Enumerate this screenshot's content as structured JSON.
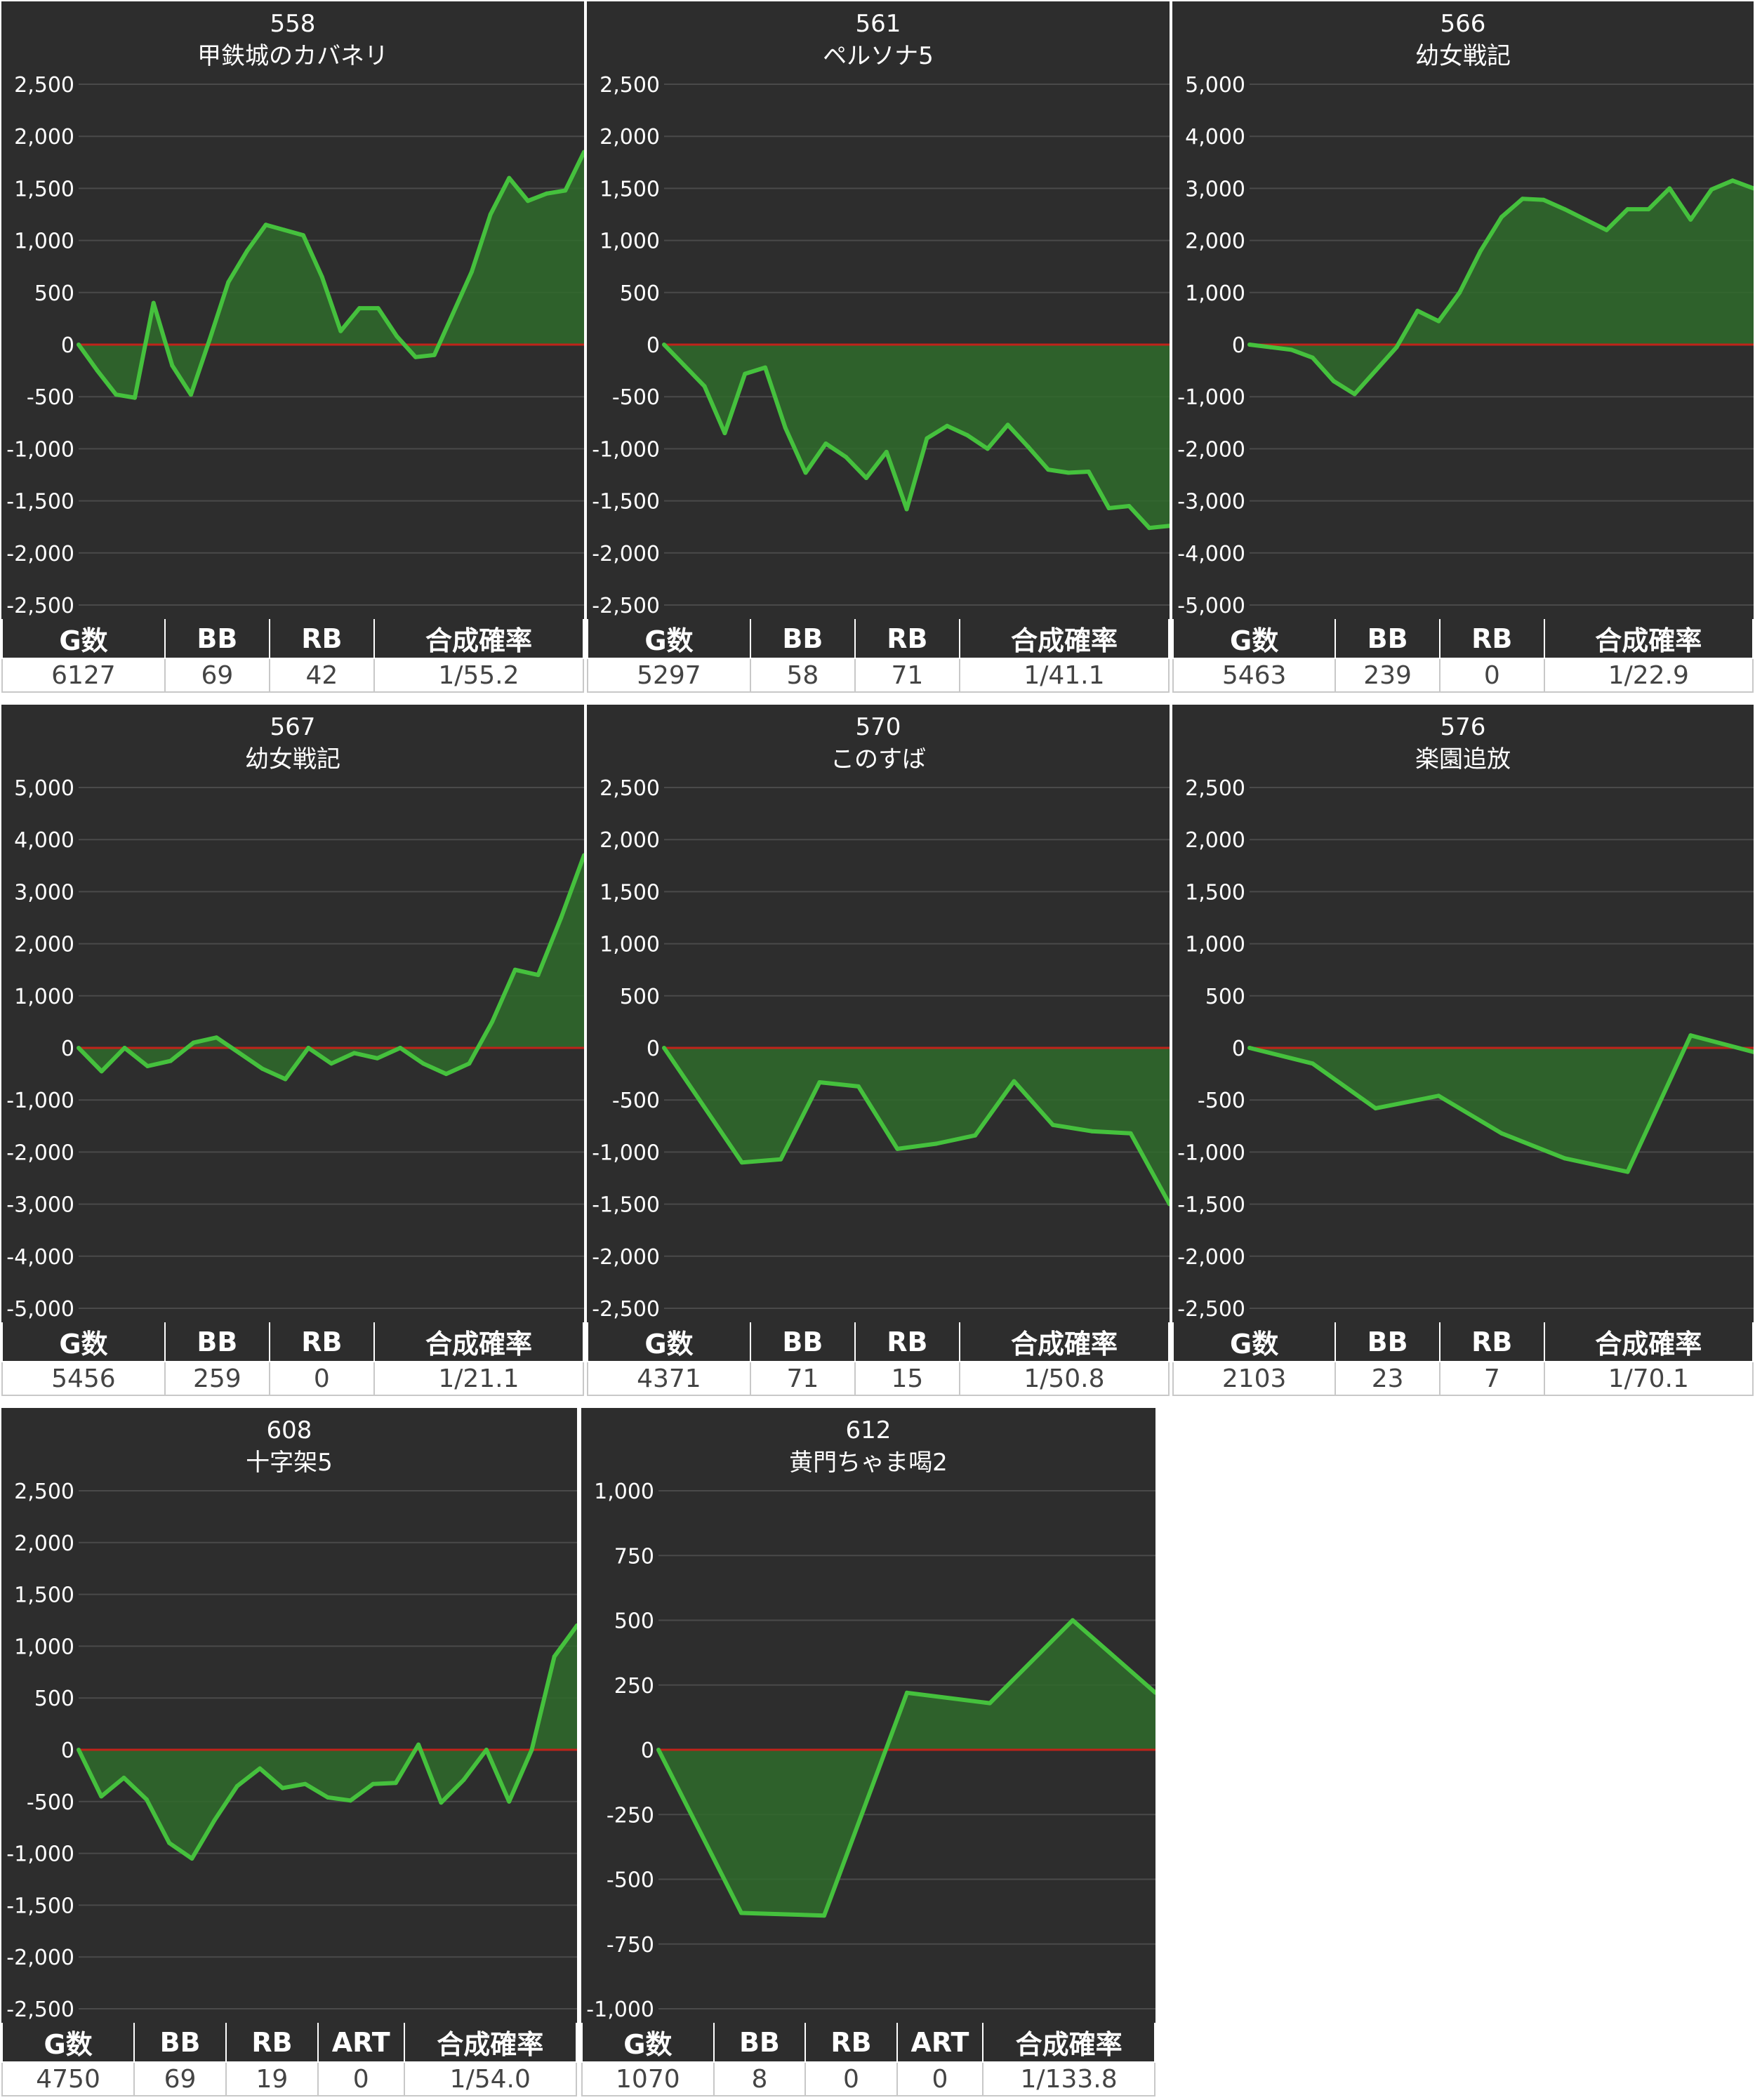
{
  "theme": {
    "panel_bg": "#2d2d2d",
    "grid_color": "#4a4a4a",
    "zero_line_color": "#c0231a",
    "line_color": "#45c13d",
    "fill_color": "#2f6b2c"
  },
  "charts": [
    {
      "machine_no": "558",
      "machine_name": "甲鉄城のカバネリ",
      "chart_data": {
        "type": "area",
        "y_ticks": [
          "2,500",
          "2,000",
          "1,500",
          "1,000",
          "500",
          "0",
          "-500",
          "-1,000",
          "-1,500",
          "-2,000",
          "-2,500"
        ],
        "ylim": [
          -2500,
          2500
        ],
        "values": [
          0,
          -250,
          -480,
          -510,
          400,
          -200,
          -480,
          50,
          600,
          900,
          1150,
          1100,
          1050,
          650,
          130,
          350,
          350,
          80,
          -120,
          -100,
          300,
          700,
          1250,
          1600,
          1380,
          1450,
          1480,
          1850
        ]
      },
      "stats": {
        "headers": [
          "G数",
          "BB",
          "RB",
          "合成確率"
        ],
        "values": [
          "6127",
          "69",
          "42",
          "1/55.2"
        ]
      }
    },
    {
      "machine_no": "561",
      "machine_name": "ペルソナ5",
      "chart_data": {
        "type": "area",
        "y_ticks": [
          "2,500",
          "2,000",
          "1,500",
          "1,000",
          "500",
          "0",
          "-500",
          "-1,000",
          "-1,500",
          "-2,000",
          "-2,500"
        ],
        "ylim": [
          -2500,
          2500
        ],
        "values": [
          0,
          -200,
          -400,
          -850,
          -280,
          -220,
          -800,
          -1230,
          -950,
          -1080,
          -1280,
          -1030,
          -1580,
          -900,
          -780,
          -870,
          -1000,
          -770,
          -980,
          -1200,
          -1230,
          -1220,
          -1570,
          -1550,
          -1760,
          -1740
        ]
      },
      "stats": {
        "headers": [
          "G数",
          "BB",
          "RB",
          "合成確率"
        ],
        "values": [
          "5297",
          "58",
          "71",
          "1/41.1"
        ]
      }
    },
    {
      "machine_no": "566",
      "machine_name": "幼女戦記",
      "chart_data": {
        "type": "area",
        "y_ticks": [
          "5,000",
          "4,000",
          "3,000",
          "2,000",
          "1,000",
          "0",
          "-1,000",
          "-2,000",
          "-3,000",
          "-4,000",
          "-5,000"
        ],
        "ylim": [
          -5000,
          5000
        ],
        "values": [
          0,
          -50,
          -100,
          -250,
          -700,
          -950,
          -500,
          -50,
          650,
          450,
          1000,
          1800,
          2450,
          2800,
          2780,
          2600,
          2400,
          2200,
          2600,
          2600,
          3000,
          2400,
          2980,
          3150,
          3000
        ]
      },
      "stats": {
        "headers": [
          "G数",
          "BB",
          "RB",
          "合成確率"
        ],
        "values": [
          "5463",
          "239",
          "0",
          "1/22.9"
        ]
      }
    },
    {
      "machine_no": "567",
      "machine_name": "幼女戦記",
      "chart_data": {
        "type": "area",
        "y_ticks": [
          "5,000",
          "4,000",
          "3,000",
          "2,000",
          "1,000",
          "0",
          "-1,000",
          "-2,000",
          "-3,000",
          "-4,000",
          "-5,000"
        ],
        "ylim": [
          -5000,
          5000
        ],
        "values": [
          0,
          -450,
          0,
          -350,
          -250,
          100,
          200,
          -100,
          -400,
          -600,
          0,
          -300,
          -100,
          -200,
          0,
          -300,
          -500,
          -300,
          500,
          1500,
          1400,
          2500,
          3700
        ]
      },
      "stats": {
        "headers": [
          "G数",
          "BB",
          "RB",
          "合成確率"
        ],
        "values": [
          "5456",
          "259",
          "0",
          "1/21.1"
        ]
      }
    },
    {
      "machine_no": "570",
      "machine_name": "このすば",
      "chart_data": {
        "type": "area",
        "y_ticks": [
          "2,500",
          "2,000",
          "1,500",
          "1,000",
          "500",
          "0",
          "-500",
          "-1,000",
          "-1,500",
          "-2,000",
          "-2,500"
        ],
        "ylim": [
          -2500,
          2500
        ],
        "values": [
          0,
          -550,
          -1100,
          -1070,
          -330,
          -370,
          -970,
          -920,
          -840,
          -320,
          -740,
          -800,
          -820,
          -1500
        ]
      },
      "stats": {
        "headers": [
          "G数",
          "BB",
          "RB",
          "合成確率"
        ],
        "values": [
          "4371",
          "71",
          "15",
          "1/50.8"
        ]
      }
    },
    {
      "machine_no": "576",
      "machine_name": "楽園追放",
      "chart_data": {
        "type": "area",
        "y_ticks": [
          "2,500",
          "2,000",
          "1,500",
          "1,000",
          "500",
          "0",
          "-500",
          "-1,000",
          "-1,500",
          "-2,000",
          "-2,500"
        ],
        "ylim": [
          -2500,
          2500
        ],
        "values": [
          0,
          -150,
          -580,
          -460,
          -820,
          -1060,
          -1190,
          120,
          -40
        ]
      },
      "stats": {
        "headers": [
          "G数",
          "BB",
          "RB",
          "合成確率"
        ],
        "values": [
          "2103",
          "23",
          "7",
          "1/70.1"
        ]
      }
    },
    {
      "machine_no": "608",
      "machine_name": "十字架5",
      "chart_data": {
        "type": "area",
        "y_ticks": [
          "2,500",
          "2,000",
          "1,500",
          "1,000",
          "500",
          "0",
          "-500",
          "-1,000",
          "-1,500",
          "-2,000",
          "-2,500"
        ],
        "ylim": [
          -2500,
          2500
        ],
        "values": [
          0,
          -450,
          -270,
          -480,
          -900,
          -1050,
          -680,
          -350,
          -180,
          -370,
          -330,
          -460,
          -490,
          -330,
          -320,
          50,
          -510,
          -290,
          0,
          -500,
          0,
          900,
          1200
        ]
      },
      "stats": {
        "headers": [
          "G数",
          "BB",
          "RB",
          "ART",
          "合成確率"
        ],
        "values": [
          "4750",
          "69",
          "19",
          "0",
          "1/54.0"
        ]
      }
    },
    {
      "machine_no": "612",
      "machine_name": "黄門ちゃま喝2",
      "chart_data": {
        "type": "area",
        "y_ticks": [
          "1,000",
          "750",
          "500",
          "250",
          "0",
          "-250",
          "-500",
          "-750",
          "-1,000"
        ],
        "ylim": [
          -1000,
          1000
        ],
        "values": [
          0,
          -630,
          -640,
          220,
          180,
          500,
          220
        ]
      },
      "stats": {
        "headers": [
          "G数",
          "BB",
          "RB",
          "ART",
          "合成確率"
        ],
        "values": [
          "1070",
          "8",
          "0",
          "0",
          "1/133.8"
        ]
      }
    }
  ]
}
